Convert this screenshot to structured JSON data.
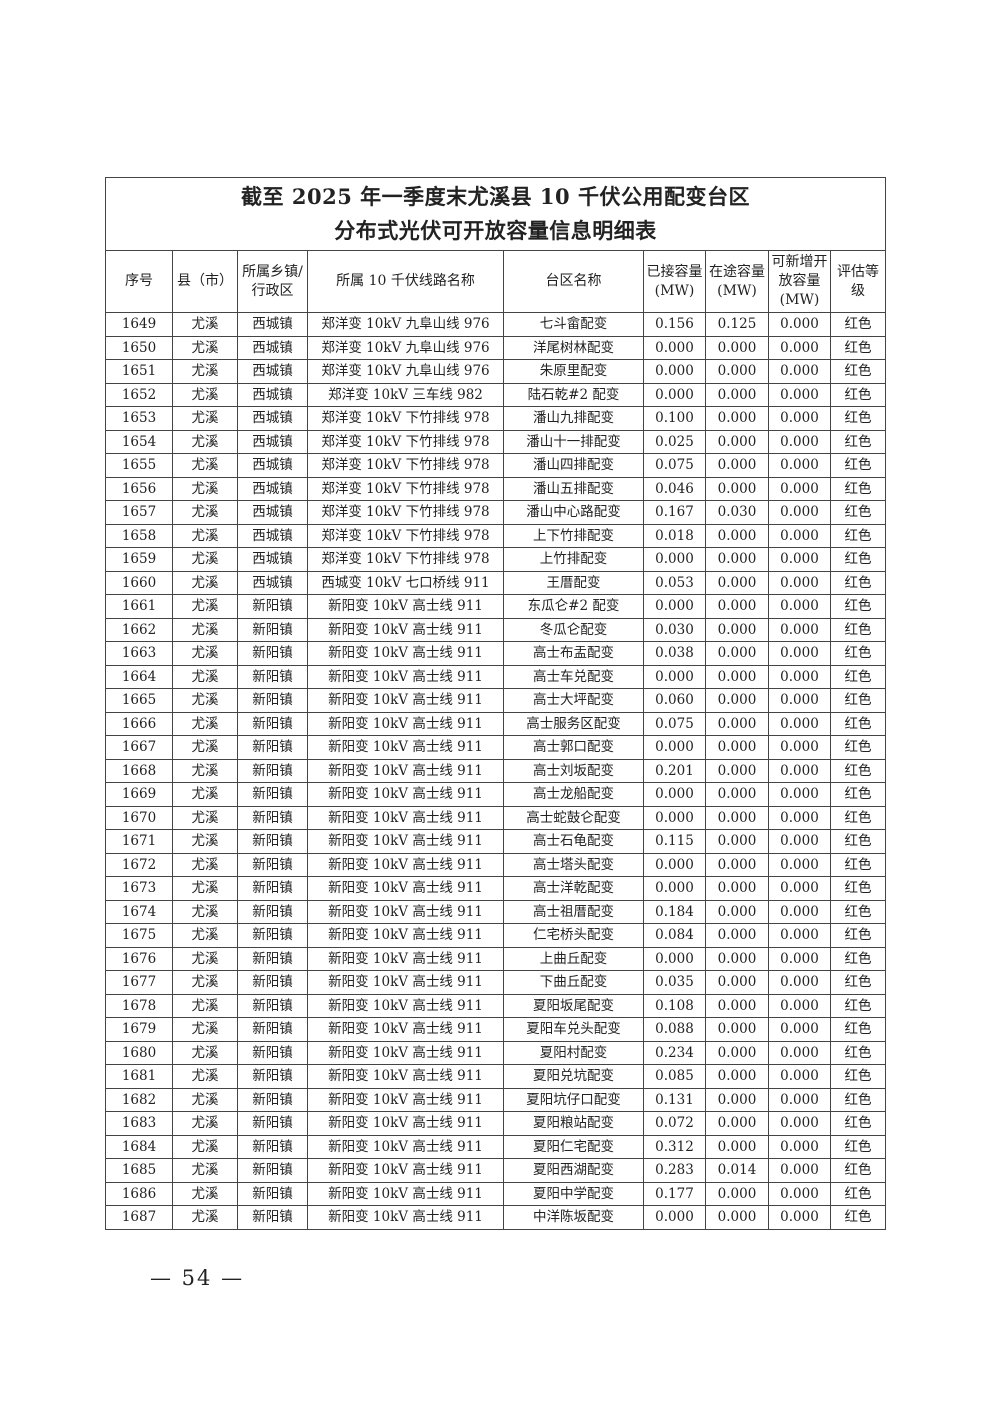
{
  "title": {
    "line1": "截至 2025 年一季度末尤溪县 10 千伏公用配变台区",
    "line2": "分布式光伏可开放容量信息明细表"
  },
  "table": {
    "headers": [
      "序号",
      "县（市）",
      "所属乡镇/行政区",
      "所属 10 千伏线路名称",
      "台区名称",
      "已接容量(MW)",
      "在途容量(MW)",
      "可新增开放容量(MW)",
      "评估等级"
    ],
    "rows": [
      [
        "1649",
        "尤溪",
        "西城镇",
        "郑洋变 10kV 九阜山线 976",
        "七斗畲配变",
        "0.156",
        "0.125",
        "0.000",
        "红色"
      ],
      [
        "1650",
        "尤溪",
        "西城镇",
        "郑洋变 10kV 九阜山线 976",
        "洋尾树林配变",
        "0.000",
        "0.000",
        "0.000",
        "红色"
      ],
      [
        "1651",
        "尤溪",
        "西城镇",
        "郑洋变 10kV 九阜山线 976",
        "朱原里配变",
        "0.000",
        "0.000",
        "0.000",
        "红色"
      ],
      [
        "1652",
        "尤溪",
        "西城镇",
        "郑洋变 10kV 三车线 982",
        "陆石乾#2 配变",
        "0.000",
        "0.000",
        "0.000",
        "红色"
      ],
      [
        "1653",
        "尤溪",
        "西城镇",
        "郑洋变 10kV 下竹排线 978",
        "潘山九排配变",
        "0.100",
        "0.000",
        "0.000",
        "红色"
      ],
      [
        "1654",
        "尤溪",
        "西城镇",
        "郑洋变 10kV 下竹排线 978",
        "潘山十一排配变",
        "0.025",
        "0.000",
        "0.000",
        "红色"
      ],
      [
        "1655",
        "尤溪",
        "西城镇",
        "郑洋变 10kV 下竹排线 978",
        "潘山四排配变",
        "0.075",
        "0.000",
        "0.000",
        "红色"
      ],
      [
        "1656",
        "尤溪",
        "西城镇",
        "郑洋变 10kV 下竹排线 978",
        "潘山五排配变",
        "0.046",
        "0.000",
        "0.000",
        "红色"
      ],
      [
        "1657",
        "尤溪",
        "西城镇",
        "郑洋变 10kV 下竹排线 978",
        "潘山中心路配变",
        "0.167",
        "0.030",
        "0.000",
        "红色"
      ],
      [
        "1658",
        "尤溪",
        "西城镇",
        "郑洋变 10kV 下竹排线 978",
        "上下竹排配变",
        "0.018",
        "0.000",
        "0.000",
        "红色"
      ],
      [
        "1659",
        "尤溪",
        "西城镇",
        "郑洋变 10kV 下竹排线 978",
        "上竹排配变",
        "0.000",
        "0.000",
        "0.000",
        "红色"
      ],
      [
        "1660",
        "尤溪",
        "西城镇",
        "西城变 10kV 七口桥线 911",
        "王厝配变",
        "0.053",
        "0.000",
        "0.000",
        "红色"
      ],
      [
        "1661",
        "尤溪",
        "新阳镇",
        "新阳变 10kV 高士线 911",
        "东瓜仑#2 配变",
        "0.000",
        "0.000",
        "0.000",
        "红色"
      ],
      [
        "1662",
        "尤溪",
        "新阳镇",
        "新阳变 10kV 高士线 911",
        "冬瓜仑配变",
        "0.030",
        "0.000",
        "0.000",
        "红色"
      ],
      [
        "1663",
        "尤溪",
        "新阳镇",
        "新阳变 10kV 高士线 911",
        "高士布盂配变",
        "0.038",
        "0.000",
        "0.000",
        "红色"
      ],
      [
        "1664",
        "尤溪",
        "新阳镇",
        "新阳变 10kV 高士线 911",
        "高士车兑配变",
        "0.000",
        "0.000",
        "0.000",
        "红色"
      ],
      [
        "1665",
        "尤溪",
        "新阳镇",
        "新阳变 10kV 高士线 911",
        "高士大坪配变",
        "0.060",
        "0.000",
        "0.000",
        "红色"
      ],
      [
        "1666",
        "尤溪",
        "新阳镇",
        "新阳变 10kV 高士线 911",
        "高士服务区配变",
        "0.075",
        "0.000",
        "0.000",
        "红色"
      ],
      [
        "1667",
        "尤溪",
        "新阳镇",
        "新阳变 10kV 高士线 911",
        "高士郭口配变",
        "0.000",
        "0.000",
        "0.000",
        "红色"
      ],
      [
        "1668",
        "尤溪",
        "新阳镇",
        "新阳变 10kV 高士线 911",
        "高士刘坂配变",
        "0.201",
        "0.000",
        "0.000",
        "红色"
      ],
      [
        "1669",
        "尤溪",
        "新阳镇",
        "新阳变 10kV 高士线 911",
        "高士龙船配变",
        "0.000",
        "0.000",
        "0.000",
        "红色"
      ],
      [
        "1670",
        "尤溪",
        "新阳镇",
        "新阳变 10kV 高士线 911",
        "高士蛇鼓仑配变",
        "0.000",
        "0.000",
        "0.000",
        "红色"
      ],
      [
        "1671",
        "尤溪",
        "新阳镇",
        "新阳变 10kV 高士线 911",
        "高士石龟配变",
        "0.115",
        "0.000",
        "0.000",
        "红色"
      ],
      [
        "1672",
        "尤溪",
        "新阳镇",
        "新阳变 10kV 高士线 911",
        "高士塔头配变",
        "0.000",
        "0.000",
        "0.000",
        "红色"
      ],
      [
        "1673",
        "尤溪",
        "新阳镇",
        "新阳变 10kV 高士线 911",
        "高士洋乾配变",
        "0.000",
        "0.000",
        "0.000",
        "红色"
      ],
      [
        "1674",
        "尤溪",
        "新阳镇",
        "新阳变 10kV 高士线 911",
        "高士祖厝配变",
        "0.184",
        "0.000",
        "0.000",
        "红色"
      ],
      [
        "1675",
        "尤溪",
        "新阳镇",
        "新阳变 10kV 高士线 911",
        "仁宅桥头配变",
        "0.084",
        "0.000",
        "0.000",
        "红色"
      ],
      [
        "1676",
        "尤溪",
        "新阳镇",
        "新阳变 10kV 高士线 911",
        "上曲丘配变",
        "0.000",
        "0.000",
        "0.000",
        "红色"
      ],
      [
        "1677",
        "尤溪",
        "新阳镇",
        "新阳变 10kV 高士线 911",
        "下曲丘配变",
        "0.035",
        "0.000",
        "0.000",
        "红色"
      ],
      [
        "1678",
        "尤溪",
        "新阳镇",
        "新阳变 10kV 高士线 911",
        "夏阳坂尾配变",
        "0.108",
        "0.000",
        "0.000",
        "红色"
      ],
      [
        "1679",
        "尤溪",
        "新阳镇",
        "新阳变 10kV 高士线 911",
        "夏阳车兑头配变",
        "0.088",
        "0.000",
        "0.000",
        "红色"
      ],
      [
        "1680",
        "尤溪",
        "新阳镇",
        "新阳变 10kV 高士线 911",
        "夏阳村配变",
        "0.234",
        "0.000",
        "0.000",
        "红色"
      ],
      [
        "1681",
        "尤溪",
        "新阳镇",
        "新阳变 10kV 高士线 911",
        "夏阳兑坑配变",
        "0.085",
        "0.000",
        "0.000",
        "红色"
      ],
      [
        "1682",
        "尤溪",
        "新阳镇",
        "新阳变 10kV 高士线 911",
        "夏阳坑仔口配变",
        "0.131",
        "0.000",
        "0.000",
        "红色"
      ],
      [
        "1683",
        "尤溪",
        "新阳镇",
        "新阳变 10kV 高士线 911",
        "夏阳粮站配变",
        "0.072",
        "0.000",
        "0.000",
        "红色"
      ],
      [
        "1684",
        "尤溪",
        "新阳镇",
        "新阳变 10kV 高士线 911",
        "夏阳仁宅配变",
        "0.312",
        "0.000",
        "0.000",
        "红色"
      ],
      [
        "1685",
        "尤溪",
        "新阳镇",
        "新阳变 10kV 高士线 911",
        "夏阳西湖配变",
        "0.283",
        "0.014",
        "0.000",
        "红色"
      ],
      [
        "1686",
        "尤溪",
        "新阳镇",
        "新阳变 10kV 高士线 911",
        "夏阳中学配变",
        "0.177",
        "0.000",
        "0.000",
        "红色"
      ],
      [
        "1687",
        "尤溪",
        "新阳镇",
        "新阳变 10kV 高士线 911",
        "中洋陈坂配变",
        "0.000",
        "0.000",
        "0.000",
        "红色"
      ]
    ]
  },
  "page_number": "— 54 —"
}
